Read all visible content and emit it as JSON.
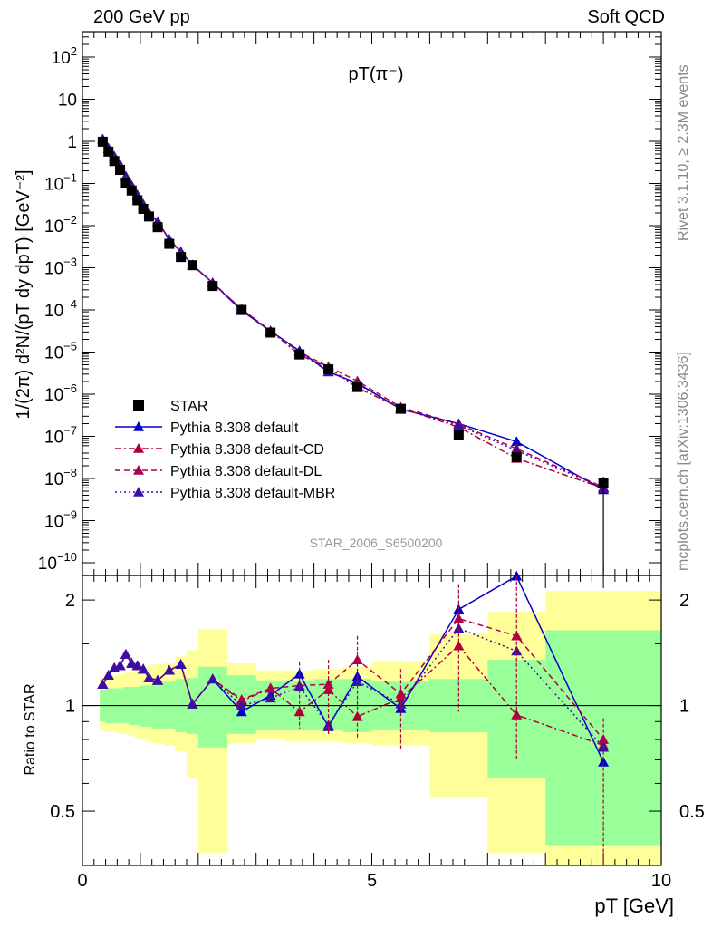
{
  "header": {
    "left": "200 GeV pp",
    "right": "Soft QCD"
  },
  "side_labels": {
    "top": "Rivet 3.1.10, ≥ 2.3M events",
    "bottom": "mcplots.cern.ch [arXiv:1306.3436]"
  },
  "colors": {
    "star": "#000000",
    "default": "#0000cc",
    "cd": "#b0003a",
    "dl": "#b0004e",
    "mbr": "#3a0fa8",
    "band_inner": "#99ff99",
    "band_outer": "#ffff99",
    "watermark": "#999999"
  },
  "chart_data": [
    {
      "type": "scatter",
      "title": "pT(π⁻)",
      "watermark": "STAR_2006_S6500200",
      "ylabel": "1/(2π) d²N/(p_T dy dp_T) [GeV⁻²]",
      "xlim": [
        0,
        10
      ],
      "ylim": [
        5e-11,
        400
      ],
      "yscale": "log",
      "x": [
        0.35,
        0.45,
        0.55,
        0.65,
        0.75,
        0.85,
        0.95,
        1.05,
        1.15,
        1.3,
        1.5,
        1.7,
        1.9,
        2.25,
        2.75,
        3.25,
        3.75,
        4.25,
        4.75,
        5.5,
        6.5,
        7.5,
        9.0
      ],
      "legend": {
        "position": "lower-left",
        "entries": [
          "STAR",
          "Pythia 8.308 default",
          "Pythia 8.308 default-CD",
          "Pythia 8.308 default-DL",
          "Pythia 8.308 default-MBR"
        ]
      },
      "series": [
        {
          "name": "STAR",
          "marker": "square",
          "values": [
            0.98,
            0.57,
            0.34,
            0.21,
            0.105,
            0.068,
            0.04,
            0.025,
            0.0165,
            0.0092,
            0.0037,
            0.0018,
            0.00115,
            0.00037,
            0.0001,
            2.9e-05,
            8.8e-06,
            3.9e-06,
            1.5e-06,
            4.5e-07,
            1.1e-07,
            3.2e-08,
            7.8e-09
          ]
        },
        {
          "name": "Pythia 8.308 default",
          "style": "solid",
          "values": [
            1.12,
            0.68,
            0.44,
            0.28,
            0.148,
            0.089,
            0.053,
            0.032,
            0.0195,
            0.0125,
            0.0047,
            0.0024,
            0.00116,
            0.00044,
            9.6e-05,
            3.15e-05,
            1.07e-05,
            3.4e-06,
            1.83e-06,
            4.4e-07,
            2e-07,
            7.5e-08,
            5.4e-09
          ]
        },
        {
          "name": "Pythia 8.308 default-CD",
          "style": "dashdot",
          "values": [
            1.12,
            0.68,
            0.44,
            0.28,
            0.148,
            0.089,
            0.053,
            0.032,
            0.0195,
            0.0125,
            0.0047,
            0.0024,
            0.00116,
            0.00044,
            0.000104,
            3.2e-05,
            8.5e-06,
            4.3e-06,
            1.42e-06,
            4.7e-07,
            1.65e-07,
            3e-08,
            5.9e-09
          ]
        },
        {
          "name": "Pythia 8.308 default-DL",
          "style": "dashed",
          "values": [
            1.12,
            0.68,
            0.44,
            0.28,
            0.148,
            0.089,
            0.053,
            0.032,
            0.0195,
            0.0125,
            0.0047,
            0.0024,
            0.00116,
            0.00044,
            0.000104,
            3.2e-05,
            1e-05,
            4.5e-06,
            2.05e-06,
            4.9e-07,
            1.95e-07,
            5.1e-08,
            6.2e-09
          ]
        },
        {
          "name": "Pythia 8.308 default-MBR",
          "style": "dotted",
          "values": [
            1.12,
            0.68,
            0.44,
            0.28,
            0.148,
            0.089,
            0.053,
            0.032,
            0.0195,
            0.0125,
            0.0047,
            0.0024,
            0.00116,
            0.00044,
            0.0001,
            3.05e-05,
            1e-05,
            3.4e-06,
            1.75e-06,
            4.55e-07,
            1.82e-07,
            4.6e-08,
            6e-09
          ]
        }
      ]
    },
    {
      "type": "line",
      "ylabel": "Ratio to STAR",
      "xlabel": "p_T [GeV]",
      "xlim": [
        0,
        10
      ],
      "ylim": [
        0.35,
        2.35
      ],
      "yscale": "log",
      "x_ticks": [
        0,
        5,
        10
      ],
      "y_ticks": [
        0.5,
        1,
        2
      ],
      "reference": 1,
      "x": [
        0.35,
        0.45,
        0.55,
        0.65,
        0.75,
        0.85,
        0.95,
        1.05,
        1.15,
        1.3,
        1.5,
        1.7,
        1.9,
        2.25,
        2.75,
        3.25,
        3.75,
        4.25,
        4.75,
        5.5,
        6.5,
        7.5,
        9.0
      ],
      "series": [
        {
          "name": "Pythia 8.308 default",
          "values": [
            1.15,
            1.22,
            1.28,
            1.3,
            1.4,
            1.32,
            1.3,
            1.27,
            1.2,
            1.18,
            1.26,
            1.31,
            1.01,
            1.19,
            0.96,
            1.07,
            1.23,
            0.87,
            1.21,
            0.98,
            1.88,
            2.34,
            0.69
          ]
        },
        {
          "name": "Pythia 8.308 default-CD",
          "values": [
            1.15,
            1.22,
            1.28,
            1.3,
            1.4,
            1.32,
            1.3,
            1.27,
            1.2,
            1.18,
            1.26,
            1.31,
            1.01,
            1.19,
            1.03,
            1.12,
            0.96,
            1.11,
            0.93,
            1.05,
            1.48,
            0.94,
            0.77
          ]
        },
        {
          "name": "Pythia 8.308 default-DL",
          "values": [
            1.15,
            1.22,
            1.28,
            1.3,
            1.4,
            1.32,
            1.3,
            1.27,
            1.2,
            1.18,
            1.26,
            1.31,
            1.01,
            1.19,
            1.04,
            1.12,
            1.14,
            1.15,
            1.35,
            1.08,
            1.77,
            1.58,
            0.8
          ]
        },
        {
          "name": "Pythia 8.308 default-MBR",
          "values": [
            1.15,
            1.22,
            1.28,
            1.3,
            1.4,
            1.32,
            1.3,
            1.27,
            1.2,
            1.18,
            1.26,
            1.31,
            1.01,
            1.19,
            1.0,
            1.05,
            1.13,
            0.88,
            1.17,
            1.01,
            1.66,
            1.43,
            0.76
          ]
        }
      ],
      "bands": {
        "edges": [
          0.3,
          0.4,
          0.5,
          0.6,
          0.7,
          0.8,
          0.9,
          1.0,
          1.1,
          1.2,
          1.4,
          1.6,
          1.8,
          2.0,
          2.5,
          3.0,
          3.5,
          4.0,
          4.5,
          5.0,
          6.0,
          7.0,
          8.0,
          10.0
        ],
        "inner_upper": [
          1.11,
          1.12,
          1.12,
          1.12,
          1.13,
          1.13,
          1.13,
          1.14,
          1.14,
          1.16,
          1.17,
          1.19,
          1.2,
          1.29,
          1.22,
          1.18,
          1.18,
          1.19,
          1.19,
          1.17,
          1.19,
          1.35,
          1.64
        ],
        "inner_lower": [
          0.9,
          0.89,
          0.89,
          0.89,
          0.89,
          0.88,
          0.88,
          0.87,
          0.87,
          0.86,
          0.86,
          0.84,
          0.83,
          0.76,
          0.83,
          0.85,
          0.85,
          0.85,
          0.84,
          0.85,
          0.84,
          0.62,
          0.4
        ],
        "outer_upper": [
          1.2,
          1.22,
          1.22,
          1.23,
          1.24,
          1.25,
          1.26,
          1.27,
          1.29,
          1.31,
          1.32,
          1.38,
          1.44,
          1.65,
          1.32,
          1.26,
          1.26,
          1.27,
          1.29,
          1.34,
          1.6,
          1.85,
          2.12
        ],
        "outer_lower": [
          0.85,
          0.84,
          0.84,
          0.83,
          0.83,
          0.82,
          0.81,
          0.8,
          0.79,
          0.78,
          0.77,
          0.74,
          0.62,
          0.38,
          0.78,
          0.8,
          0.79,
          0.79,
          0.78,
          0.77,
          0.55,
          0.38,
          0.35
        ]
      },
      "error_bars": [
        {
          "x": 6.5,
          "low": 0.96,
          "high": 2.22
        },
        {
          "x": 7.5,
          "low": 0.7,
          "high": 2.34
        },
        {
          "x": 9.0,
          "low": 0.35,
          "high": 0.92
        },
        {
          "x": 4.75,
          "low": 0.8,
          "high": 1.58
        },
        {
          "x": 5.5,
          "low": 0.75,
          "high": 1.27
        },
        {
          "x": 4.25,
          "low": 0.83,
          "high": 1.35
        },
        {
          "x": 3.75,
          "low": 0.86,
          "high": 1.33
        }
      ]
    }
  ]
}
